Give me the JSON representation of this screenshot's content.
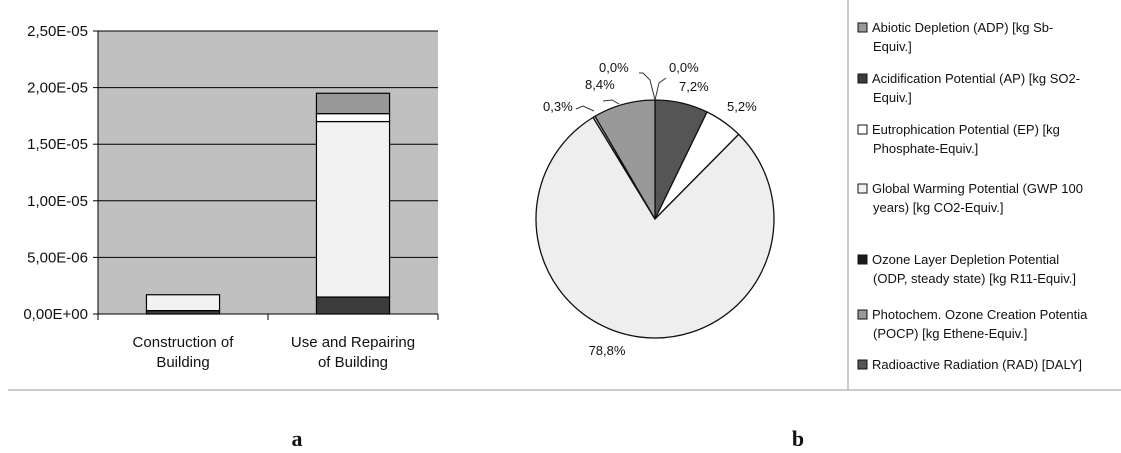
{
  "chart_data": [
    {
      "type": "bar",
      "stacked": true,
      "panel": "a",
      "categories": [
        "Construction of Building",
        "Use and Repairing of Building"
      ],
      "category_lines": [
        [
          "Construction of",
          "Building"
        ],
        [
          "Use and Repairing",
          "of Building"
        ]
      ],
      "ylim": [
        0,
        2.5e-05
      ],
      "yticks": [
        0,
        5e-06,
        1e-05,
        1.5e-05,
        2e-05,
        2.5e-05
      ],
      "ytick_labels": [
        "0,00E+00",
        "5,00E-06",
        "1,00E-05",
        "1,50E-05",
        "2,00E-05",
        "2,50E-05"
      ],
      "plot_background": "#c0c0c0",
      "grid": true,
      "series": [
        {
          "values": [
            3e-07,
            1.5e-06
          ],
          "color": "#3b3b3b"
        },
        {
          "values": [
            0,
            0.0
          ],
          "color": "#1a1a1a"
        },
        {
          "values": [
            1.4e-06,
            1.55e-05
          ],
          "color": "#f2f2f2"
        },
        {
          "values": [
            0.0,
            7e-07
          ],
          "color": "#ffffff"
        },
        {
          "values": [
            0.0,
            1.8e-06
          ],
          "color": "#999999"
        }
      ]
    },
    {
      "type": "pie",
      "panel": "b",
      "slices": [
        {
          "value": 7.2,
          "label": "7,2%",
          "color": "#555555"
        },
        {
          "value": 5.2,
          "label": "5,2%",
          "color": "#ffffff"
        },
        {
          "value": 78.8,
          "label": "78,8%",
          "color": "#eeeeee"
        },
        {
          "value": 0.3,
          "label": "0,3%",
          "color": "#cccccc"
        },
        {
          "value": 8.4,
          "label": "8,4%",
          "color": "#999999"
        },
        {
          "value": 0.0,
          "label": "0,0%",
          "color": "#888888"
        },
        {
          "value": 0.0,
          "label": "0,0%",
          "color": "#222222"
        }
      ],
      "legend": [
        {
          "lines": [
            "Abiotic Depletion (ADP) [kg Sb-",
            "Equiv.]"
          ],
          "color": "#999999"
        },
        {
          "lines": [
            "Acidification Potential (AP) [kg SO2-",
            "Equiv.]"
          ],
          "color": "#3b3b3b"
        },
        {
          "lines": [
            "Eutrophication Potential (EP) [kg",
            "Phosphate-Equiv.]"
          ],
          "color": "#ffffff"
        },
        {
          "lines": [
            "Global Warming Potential (GWP 100",
            "years) [kg CO2-Equiv.]"
          ],
          "color": "#f2f2f2"
        },
        {
          "lines": [
            "Ozone Layer Depletion Potential",
            "(ODP, steady state) [kg R11-Equiv.]"
          ],
          "color": "#1a1a1a"
        },
        {
          "lines": [
            "Photochem. Ozone Creation Potentia",
            "(POCP) [kg Ethene-Equiv.]"
          ],
          "color": "#999999"
        },
        {
          "lines": [
            "Radioactive Radiation (RAD) [DALY]"
          ],
          "color": "#555555"
        }
      ],
      "legend_position": "right"
    }
  ],
  "panel_labels": {
    "a": "a",
    "b": "b"
  }
}
